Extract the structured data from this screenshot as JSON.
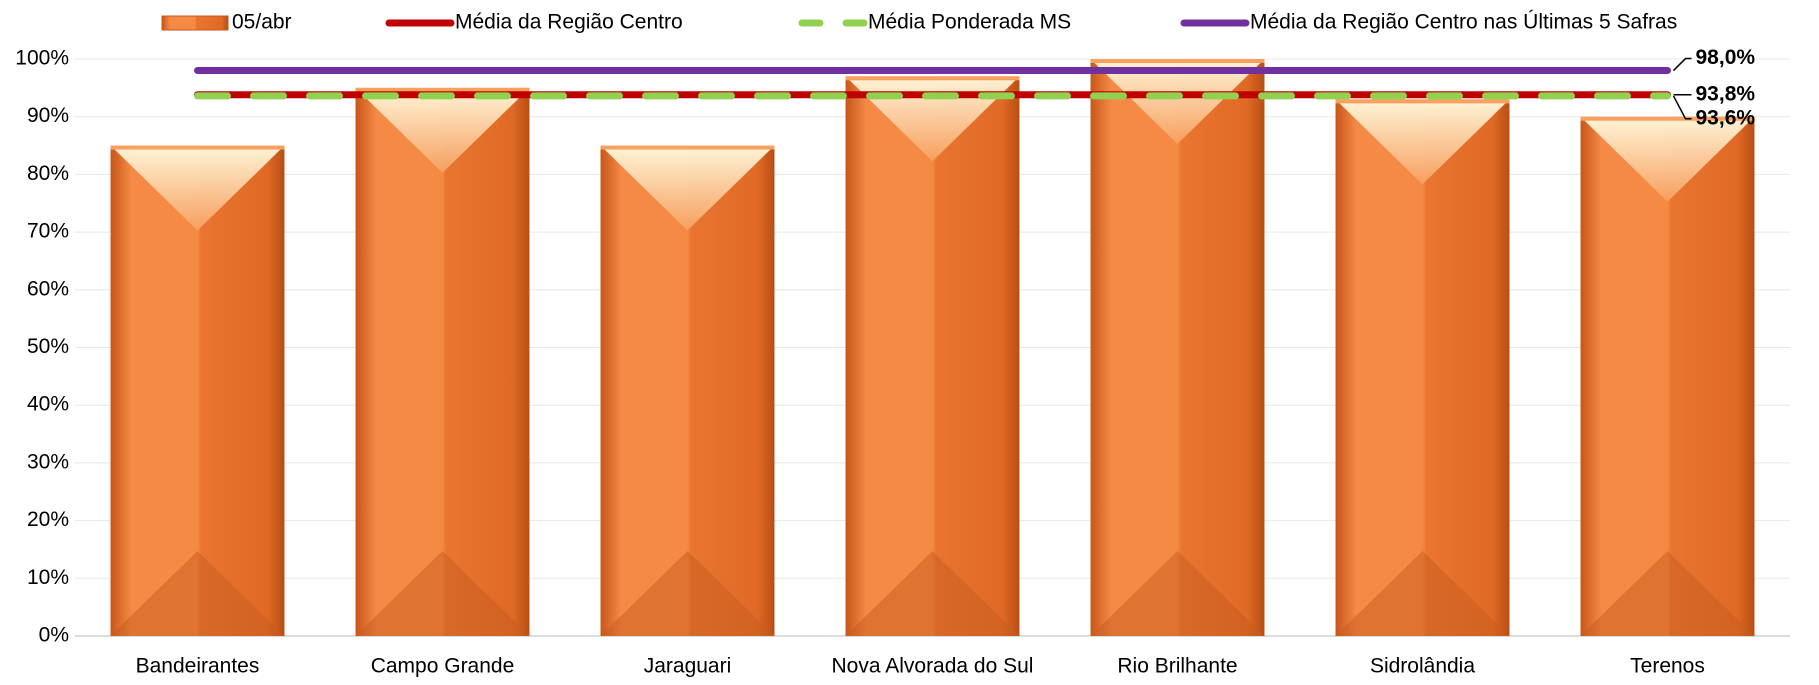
{
  "chart_data": {
    "type": "bar",
    "categories": [
      "Bandeirantes",
      "Campo Grande",
      "Jaraguari",
      "Nova Alvorada do Sul",
      "Rio Brilhante",
      "Sidrolândia",
      "Terenos"
    ],
    "series": [
      {
        "name": "05/abr",
        "color": "#f07a32",
        "values": [
          85,
          95,
          85,
          97,
          100,
          93,
          90
        ]
      }
    ],
    "reference_lines": [
      {
        "name": "Média da Região Centro nas Últimas 5 Safras",
        "color": "#7030a0",
        "style": "solid",
        "value": 98.0,
        "value_label": "98,0%"
      },
      {
        "name": "Média da Região Centro",
        "color": "#c00000",
        "style": "solid",
        "value": 93.8,
        "value_label": "93,8%"
      },
      {
        "name": "Média Ponderada MS",
        "color": "#92d050",
        "style": "dashed",
        "value": 93.6,
        "value_label": "93,6%"
      }
    ],
    "ylim": [
      0,
      100
    ],
    "yticks": [
      {
        "value": 0,
        "label": "0%"
      },
      {
        "value": 10,
        "label": "10%"
      },
      {
        "value": 20,
        "label": "20%"
      },
      {
        "value": 30,
        "label": "30%"
      },
      {
        "value": 40,
        "label": "40%"
      },
      {
        "value": 50,
        "label": "50%"
      },
      {
        "value": 60,
        "label": "60%"
      },
      {
        "value": 70,
        "label": "70%"
      },
      {
        "value": 80,
        "label": "80%"
      },
      {
        "value": 90,
        "label": "90%"
      },
      {
        "value": 100,
        "label": "100%"
      }
    ],
    "grid": true
  }
}
